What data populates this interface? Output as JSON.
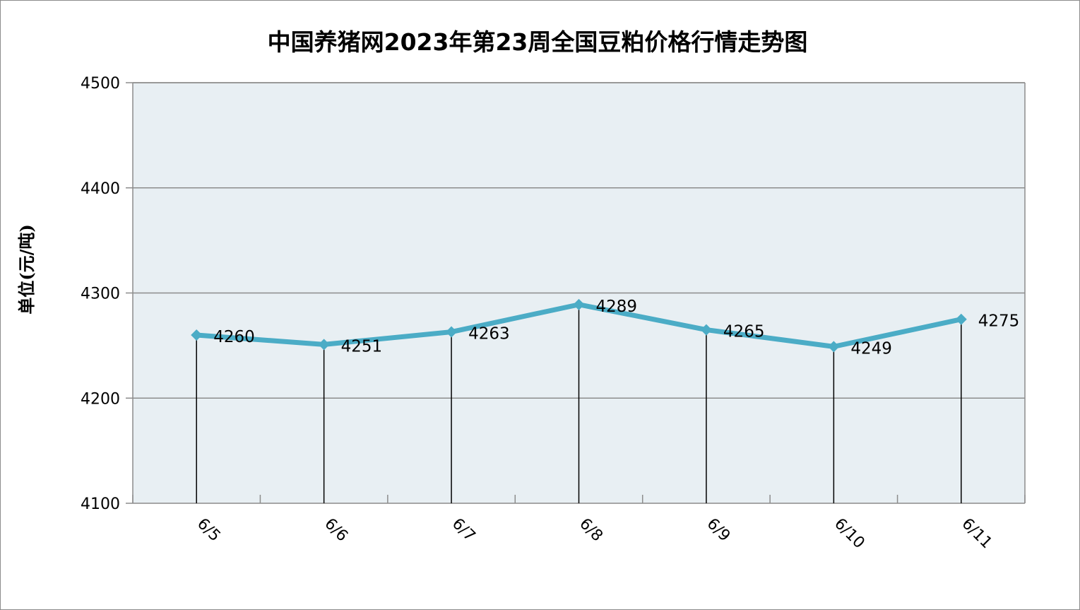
{
  "chart_data": {
    "type": "line",
    "title": "中国养猪网2023年第23周全国豆粕价格行情走势图",
    "ylabel": "单位(元/吨)",
    "xlabel": "",
    "categories": [
      "6/5",
      "6/6",
      "6/7",
      "6/8",
      "6/9",
      "6/10",
      "6/11"
    ],
    "series": [
      {
        "values": [
          4260,
          4251,
          4263,
          4289,
          4265,
          4249,
          4275
        ]
      }
    ],
    "ylim": [
      4100,
      4500
    ],
    "yticks": [
      "4100",
      "4200",
      "4300",
      "4400",
      "4500"
    ],
    "data_labels": [
      "4260",
      "4251",
      "4263",
      "4289",
      "4265",
      "4249",
      "4275"
    ],
    "grid": true,
    "drop_lines": true,
    "legend": "none",
    "colors": {
      "line": "#4bacc6",
      "plot_background": "#e8eff3",
      "gridline": "#8c8c8c",
      "drop_line": "#000000"
    }
  }
}
